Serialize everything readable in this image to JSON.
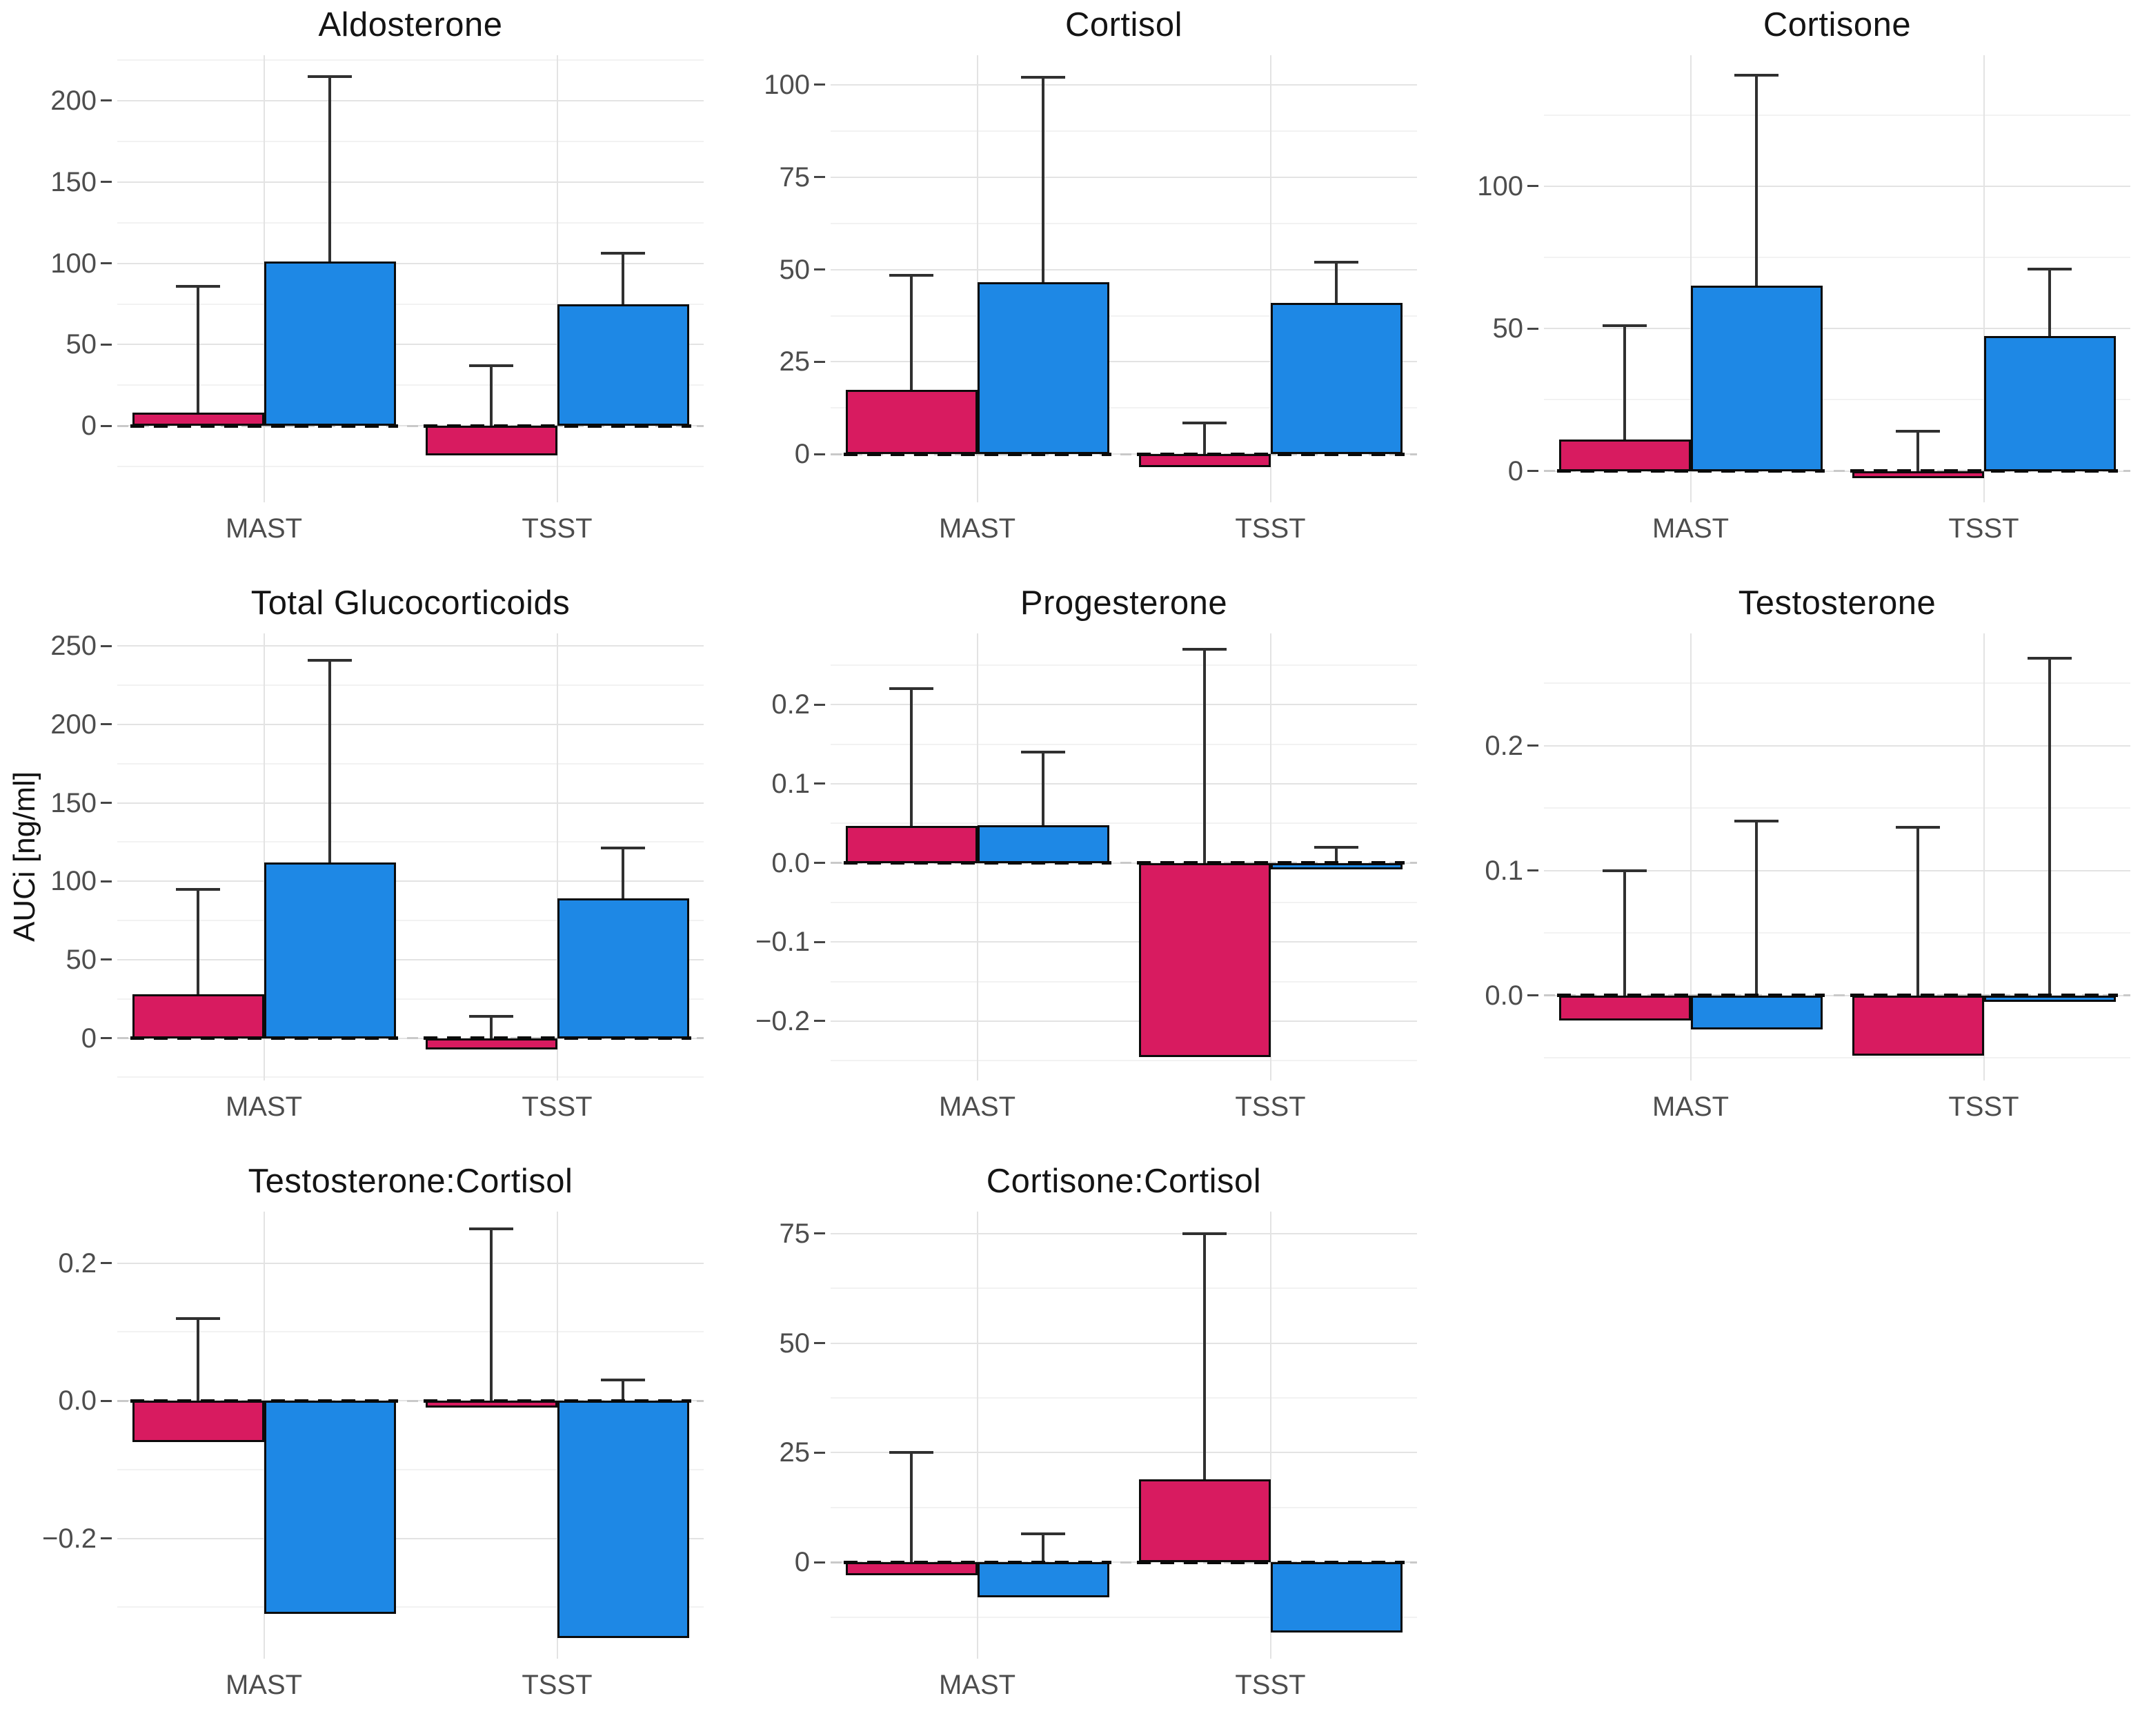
{
  "figure": {
    "y_axis_label": "AUCi [ng/ml]",
    "x_tick_labels": [
      "MAST",
      "TSST"
    ],
    "colors": {
      "bar_pink": "#D81B60",
      "bar_blue": "#1E88E5",
      "bar_outline": "#0B0B0B",
      "error_bar": "#303030",
      "grid_major": "#E3E3E3",
      "grid_minor": "#F2F2F2",
      "zero_dash_black": "#0A0A0A",
      "zero_dash_gray": "#C9C9C9",
      "tick_text": "#4D4D4D",
      "title_text": "#141414"
    },
    "layout": {
      "rows": 3,
      "cols": 3,
      "empty_cell": "row3-col3",
      "legend": "none"
    }
  },
  "chart_data": [
    {
      "type": "bar",
      "title": "Aldosterone",
      "ylim": [
        -47,
        228
      ],
      "yticks": [
        {
          "label": "200",
          "value": 200
        },
        {
          "label": "150",
          "value": 150
        },
        {
          "label": "100",
          "value": 100
        },
        {
          "label": "50",
          "value": 50
        },
        {
          "label": "0",
          "value": 0
        }
      ],
      "minor_ticks": [
        225,
        175,
        125,
        75,
        25,
        -25
      ],
      "groups": [
        {
          "category": "MAST",
          "bars": [
            {
              "series": "pink",
              "value": 8,
              "err_high": 86
            },
            {
              "series": "blue",
              "value": 101,
              "err_high": 215
            }
          ]
        },
        {
          "category": "TSST",
          "bars": [
            {
              "series": "pink",
              "value": -18,
              "err_high": 37
            },
            {
              "series": "blue",
              "value": 75,
              "err_high": 106
            }
          ]
        }
      ]
    },
    {
      "type": "bar",
      "title": "Cortisol",
      "ylim": [
        -13,
        108
      ],
      "yticks": [
        {
          "label": "100",
          "value": 100
        },
        {
          "label": "75",
          "value": 75
        },
        {
          "label": "50",
          "value": 50
        },
        {
          "label": "25",
          "value": 25
        },
        {
          "label": "0",
          "value": 0
        }
      ],
      "minor_ticks": [
        87.5,
        62.5,
        37.5,
        12.5
      ],
      "groups": [
        {
          "category": "MAST",
          "bars": [
            {
              "series": "pink",
              "value": 17.5,
              "err_high": 48.5
            },
            {
              "series": "blue",
              "value": 46.5,
              "err_high": 102
            }
          ]
        },
        {
          "category": "TSST",
          "bars": [
            {
              "series": "pink",
              "value": -3.5,
              "err_high": 8.5
            },
            {
              "series": "blue",
              "value": 41,
              "err_high": 52
            }
          ]
        }
      ]
    },
    {
      "type": "bar",
      "title": "Cortisone",
      "ylim": [
        -11,
        146
      ],
      "yticks": [
        {
          "label": "100",
          "value": 100
        },
        {
          "label": "50",
          "value": 50
        },
        {
          "label": "0",
          "value": 0
        }
      ],
      "minor_ticks": [
        125,
        75,
        25
      ],
      "groups": [
        {
          "category": "MAST",
          "bars": [
            {
              "series": "pink",
              "value": 11,
              "err_high": 51
            },
            {
              "series": "blue",
              "value": 65,
              "err_high": 139
            }
          ]
        },
        {
          "category": "TSST",
          "bars": [
            {
              "series": "pink",
              "value": -2.5,
              "err_high": 14
            },
            {
              "series": "blue",
              "value": 47.5,
              "err_high": 71
            }
          ]
        }
      ]
    },
    {
      "type": "bar",
      "title": "Total Glucocorticoids",
      "ylim": [
        -27,
        258
      ],
      "yticks": [
        {
          "label": "250",
          "value": 250
        },
        {
          "label": "200",
          "value": 200
        },
        {
          "label": "150",
          "value": 150
        },
        {
          "label": "100",
          "value": 100
        },
        {
          "label": "50",
          "value": 50
        },
        {
          "label": "0",
          "value": 0
        }
      ],
      "minor_ticks": [
        225,
        175,
        125,
        75,
        25,
        -25
      ],
      "groups": [
        {
          "category": "MAST",
          "bars": [
            {
              "series": "pink",
              "value": 28,
              "err_high": 95
            },
            {
              "series": "blue",
              "value": 112,
              "err_high": 241
            }
          ]
        },
        {
          "category": "TSST",
          "bars": [
            {
              "series": "pink",
              "value": -7,
              "err_high": 14
            },
            {
              "series": "blue",
              "value": 89,
              "err_high": 121
            }
          ]
        }
      ]
    },
    {
      "type": "bar",
      "title": "Progesterone",
      "ylim": [
        -0.275,
        0.29
      ],
      "yticks": [
        {
          "label": "0.2",
          "value": 0.2
        },
        {
          "label": "0.1",
          "value": 0.1
        },
        {
          "label": "0.0",
          "value": 0
        },
        {
          "label": "−0.1",
          "value": -0.1
        },
        {
          "label": "−0.2",
          "value": -0.2
        }
      ],
      "minor_ticks": [
        0.25,
        0.15,
        0.05,
        -0.05,
        -0.15,
        -0.25
      ],
      "groups": [
        {
          "category": "MAST",
          "bars": [
            {
              "series": "pink",
              "value": 0.047,
              "err_high": 0.22
            },
            {
              "series": "blue",
              "value": 0.048,
              "err_high": 0.14
            }
          ]
        },
        {
          "category": "TSST",
          "bars": [
            {
              "series": "pink",
              "value": -0.245,
              "err_high": 0.27
            },
            {
              "series": "blue",
              "value": -0.008,
              "err_high": 0.02
            }
          ]
        }
      ]
    },
    {
      "type": "bar",
      "title": "Testosterone",
      "ylim": [
        -0.068,
        0.29
      ],
      "yticks": [
        {
          "label": "0.2",
          "value": 0.2
        },
        {
          "label": "0.1",
          "value": 0.1
        },
        {
          "label": "0.0",
          "value": 0
        }
      ],
      "minor_ticks": [
        0.25,
        0.15,
        0.05,
        -0.05
      ],
      "groups": [
        {
          "category": "MAST",
          "bars": [
            {
              "series": "pink",
              "value": -0.02,
              "err_high": 0.1
            },
            {
              "series": "blue",
              "value": -0.027,
              "err_high": 0.14
            }
          ]
        },
        {
          "category": "TSST",
          "bars": [
            {
              "series": "pink",
              "value": -0.048,
              "err_high": 0.135
            },
            {
              "series": "blue",
              "value": -0.005,
              "err_high": 0.27
            }
          ]
        }
      ]
    },
    {
      "type": "bar",
      "title": "Testosterone:Cortisol",
      "ylim": [
        -0.375,
        0.275
      ],
      "yticks": [
        {
          "label": "0.2",
          "value": 0.2
        },
        {
          "label": "0.0",
          "value": 0
        },
        {
          "label": "−0.2",
          "value": -0.2
        }
      ],
      "minor_ticks": [
        0.1,
        -0.1,
        -0.3
      ],
      "groups": [
        {
          "category": "MAST",
          "bars": [
            {
              "series": "pink",
              "value": -0.06,
              "err_high": 0.12
            },
            {
              "series": "blue",
              "value": -0.31,
              "err_high": null
            }
          ]
        },
        {
          "category": "TSST",
          "bars": [
            {
              "series": "pink",
              "value": -0.01,
              "err_high": 0.25
            },
            {
              "series": "blue",
              "value": -0.345,
              "err_high": 0.03
            }
          ]
        }
      ]
    },
    {
      "type": "bar",
      "title": "Cortisone:Cortisol",
      "ylim": [
        -22,
        80
      ],
      "yticks": [
        {
          "label": "75",
          "value": 75
        },
        {
          "label": "50",
          "value": 50
        },
        {
          "label": "25",
          "value": 25
        },
        {
          "label": "0",
          "value": 0
        }
      ],
      "minor_ticks": [
        62.5,
        37.5,
        12.5,
        -12.5
      ],
      "groups": [
        {
          "category": "MAST",
          "bars": [
            {
              "series": "pink",
              "value": -3,
              "err_high": 25
            },
            {
              "series": "blue",
              "value": -8,
              "err_high": 6.5
            }
          ]
        },
        {
          "category": "TSST",
          "bars": [
            {
              "series": "pink",
              "value": 19,
              "err_high": 75
            },
            {
              "series": "blue",
              "value": -16,
              "err_high": null
            }
          ]
        }
      ]
    }
  ]
}
